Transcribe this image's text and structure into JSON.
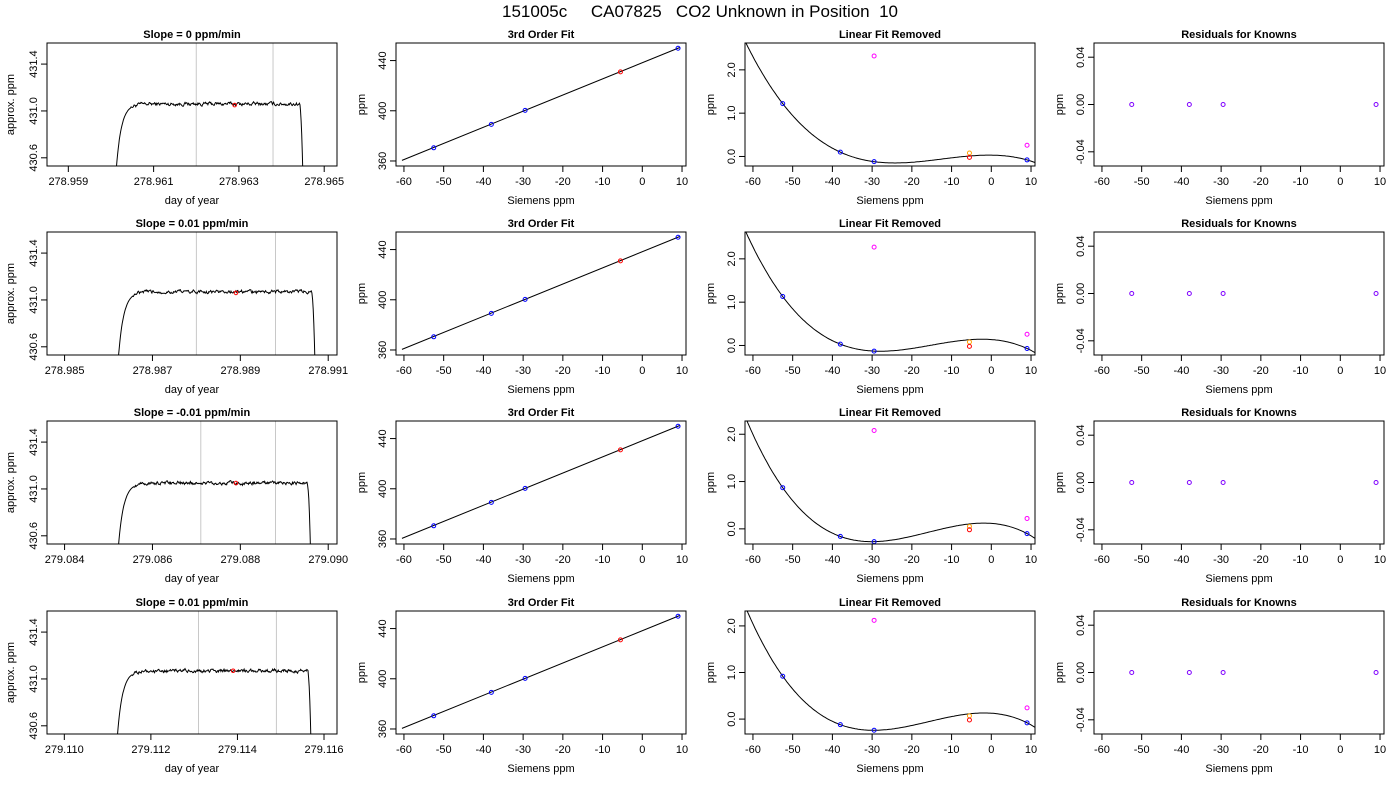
{
  "figure": {
    "title": "151005c     CA07825   CO2 Unknown in Position  10"
  },
  "colors": {
    "axis": "#000000",
    "trace": "#000000",
    "window_line": "#c8c8c8",
    "known_point": "#0000ff",
    "unknown_point": "#ff0000",
    "raw_unknown_point": "#ff00ff",
    "adjusted_point": "#ffa500",
    "residual_point": "#7f00ff"
  },
  "chart_data": [
    {
      "type": "line",
      "panel": "time",
      "title": "Slope =  0  ppm/min",
      "xlabel": "day of year",
      "ylabel": "approx. ppm",
      "xlim": [
        278.9585,
        278.9653
      ],
      "ylim": [
        430.53,
        431.58
      ],
      "xticks": [
        278.959,
        278.961,
        278.963,
        278.965
      ],
      "xtick_labels": [
        "278.959",
        "278.961",
        "278.963",
        "278.965"
      ],
      "yticks": [
        430.6,
        431.0,
        431.4
      ],
      "ytick_labels": [
        "430.6",
        "431.0",
        "431.4"
      ],
      "window_lines": [
        278.962,
        278.9638
      ],
      "trace": {
        "start": 278.9601,
        "end": 278.9645,
        "level": 431.06,
        "rise_tau": 0.00012,
        "noise": 0.012,
        "drop_days": 8e-05,
        "drop_to": 430.45
      },
      "marker": {
        "x": 278.9629,
        "y": 431.05
      }
    },
    {
      "type": "scatter",
      "panel": "fit",
      "title": "3rd Order Fit",
      "xlabel": "Siemens ppm",
      "ylabel": "ppm",
      "xlim": [
        -62,
        11
      ],
      "ylim": [
        356,
        454
      ],
      "xticks": [
        -60,
        -50,
        -40,
        -30,
        -20,
        -10,
        0,
        10
      ],
      "xtick_labels": [
        "-60",
        "-50",
        "-40",
        "-30",
        "-20",
        "-10",
        "0",
        "10"
      ],
      "yticks": [
        360,
        400,
        440
      ],
      "ytick_labels": [
        "360",
        "400",
        "440"
      ],
      "line": {
        "x": [
          -60.5,
          9.5
        ],
        "y": [
          360.5,
          450.5
        ]
      },
      "known_points": [
        {
          "x": -52.5,
          "y": 370.5
        },
        {
          "x": -38,
          "y": 389.2
        },
        {
          "x": -29.5,
          "y": 400.3
        },
        {
          "x": 9,
          "y": 449.8
        }
      ],
      "unknown_points": [
        {
          "x": -5.5,
          "y": 431.0
        }
      ]
    },
    {
      "type": "scatter",
      "panel": "linear_removed",
      "title": "Linear Fit Removed",
      "xlabel": "Siemens ppm",
      "ylabel": "ppm",
      "xlim": [
        -62,
        11
      ],
      "ylim": [
        -0.22,
        2.62
      ],
      "xticks": [
        -60,
        -50,
        -40,
        -30,
        -20,
        -10,
        0,
        10
      ],
      "xtick_labels": [
        "-60",
        "-50",
        "-40",
        "-30",
        "-20",
        "-10",
        "0",
        "10"
      ],
      "yticks": [
        0.0,
        1.0,
        2.0
      ],
      "ytick_labels": [
        "0.0",
        "1.0",
        "2.0"
      ],
      "curve": {
        "points": [
          [
            -52.5,
            1.22
          ],
          [
            -38,
            0.1
          ],
          [
            -29.5,
            -0.12
          ],
          [
            9,
            -0.08
          ]
        ]
      },
      "known_points": [
        {
          "x": -52.5,
          "y": 1.22
        },
        {
          "x": -38,
          "y": 0.1
        },
        {
          "x": -29.5,
          "y": -0.12
        },
        {
          "x": 9,
          "y": -0.08
        }
      ],
      "unknown_points": [
        {
          "x": -5.5,
          "y": -0.02
        }
      ],
      "adjusted_points": [
        {
          "x": -5.5,
          "y": 0.08
        }
      ],
      "raw_points": [
        {
          "x": -29.5,
          "y": 2.32
        },
        {
          "x": 9,
          "y": 0.26
        }
      ]
    },
    {
      "type": "scatter",
      "panel": "residuals",
      "title": "Residuals for Knowns",
      "xlabel": "Siemens ppm",
      "ylabel": "ppm",
      "xlim": [
        -62,
        11
      ],
      "ylim": [
        -0.052,
        0.052
      ],
      "xticks": [
        -60,
        -50,
        -40,
        -30,
        -20,
        -10,
        0,
        10
      ],
      "xtick_labels": [
        "-60",
        "-50",
        "-40",
        "-30",
        "-20",
        "-10",
        "0",
        "10"
      ],
      "yticks": [
        -0.04,
        0.0,
        0.04
      ],
      "ytick_labels": [
        "-0.04",
        "0.00",
        "0.04"
      ],
      "points": [
        {
          "x": -52.5,
          "y": 0
        },
        {
          "x": -38,
          "y": 0
        },
        {
          "x": -29.5,
          "y": 0
        },
        {
          "x": 9,
          "y": 0
        }
      ]
    },
    {
      "type": "line",
      "panel": "time",
      "title": "Slope =  0.01  ppm/min",
      "xlabel": "day of year",
      "ylabel": "approx. ppm",
      "xlim": [
        278.9846,
        278.9912
      ],
      "ylim": [
        430.53,
        431.58
      ],
      "xticks": [
        278.985,
        278.987,
        278.989,
        278.991
      ],
      "xtick_labels": [
        "278.985",
        "278.987",
        "278.989",
        "278.991"
      ],
      "yticks": [
        430.6,
        431.0,
        431.4
      ],
      "ytick_labels": [
        "430.6",
        "431.0",
        "431.4"
      ],
      "window_lines": [
        278.988,
        278.9898
      ],
      "trace": {
        "start": 278.9862,
        "end": 278.9907,
        "level": 431.07,
        "rise_tau": 0.00012,
        "noise": 0.012,
        "drop_days": 8e-05,
        "drop_to": 430.45
      },
      "marker": {
        "x": 278.9889,
        "y": 431.06
      }
    },
    {
      "type": "scatter",
      "panel": "fit",
      "title": "3rd Order Fit",
      "xlabel": "Siemens ppm",
      "ylabel": "ppm",
      "xlim": [
        -62,
        11
      ],
      "ylim": [
        356,
        454
      ],
      "xticks": [
        -60,
        -50,
        -40,
        -30,
        -20,
        -10,
        0,
        10
      ],
      "xtick_labels": [
        "-60",
        "-50",
        "-40",
        "-30",
        "-20",
        "-10",
        "0",
        "10"
      ],
      "yticks": [
        360,
        400,
        440
      ],
      "ytick_labels": [
        "360",
        "400",
        "440"
      ],
      "line": {
        "x": [
          -60.5,
          9.5
        ],
        "y": [
          360.5,
          450.5
        ]
      },
      "known_points": [
        {
          "x": -52.5,
          "y": 370.5
        },
        {
          "x": -38,
          "y": 389.2
        },
        {
          "x": -29.5,
          "y": 400.3
        },
        {
          "x": 9,
          "y": 449.8
        }
      ],
      "unknown_points": [
        {
          "x": -5.5,
          "y": 431.0
        }
      ]
    },
    {
      "type": "scatter",
      "panel": "linear_removed",
      "title": "Linear Fit Removed",
      "xlabel": "Siemens ppm",
      "ylabel": "ppm",
      "xlim": [
        -62,
        11
      ],
      "ylim": [
        -0.22,
        2.62
      ],
      "xticks": [
        -60,
        -50,
        -40,
        -30,
        -20,
        -10,
        0,
        10
      ],
      "xtick_labels": [
        "-60",
        "-50",
        "-40",
        "-30",
        "-20",
        "-10",
        "0",
        "10"
      ],
      "yticks": [
        0.0,
        1.0,
        2.0
      ],
      "ytick_labels": [
        "0.0",
        "1.0",
        "2.0"
      ],
      "curve": {
        "points": [
          [
            -52.5,
            1.13
          ],
          [
            -38,
            0.03
          ],
          [
            -29.5,
            -0.13
          ],
          [
            9,
            -0.07
          ]
        ]
      },
      "known_points": [
        {
          "x": -52.5,
          "y": 1.13
        },
        {
          "x": -38,
          "y": 0.03
        },
        {
          "x": -29.5,
          "y": -0.13
        },
        {
          "x": 9,
          "y": -0.07
        }
      ],
      "unknown_points": [
        {
          "x": -5.5,
          "y": -0.02
        }
      ],
      "adjusted_points": [
        {
          "x": -5.5,
          "y": 0.08
        }
      ],
      "raw_points": [
        {
          "x": -29.5,
          "y": 2.27
        },
        {
          "x": 9,
          "y": 0.26
        }
      ]
    },
    {
      "type": "scatter",
      "panel": "residuals",
      "title": "Residuals for Knowns",
      "xlabel": "Siemens ppm",
      "ylabel": "ppm",
      "xlim": [
        -62,
        11
      ],
      "ylim": [
        -0.052,
        0.052
      ],
      "xticks": [
        -60,
        -50,
        -40,
        -30,
        -20,
        -10,
        0,
        10
      ],
      "xtick_labels": [
        "-60",
        "-50",
        "-40",
        "-30",
        "-20",
        "-10",
        "0",
        "10"
      ],
      "yticks": [
        -0.04,
        0.0,
        0.04
      ],
      "ytick_labels": [
        "-0.04",
        "0.00",
        "0.04"
      ],
      "points": [
        {
          "x": -52.5,
          "y": 0
        },
        {
          "x": -38,
          "y": 0
        },
        {
          "x": -29.5,
          "y": 0
        },
        {
          "x": 9,
          "y": 0
        }
      ]
    },
    {
      "type": "line",
      "panel": "time",
      "title": "Slope =  -0.01  ppm/min",
      "xlabel": "day of year",
      "ylabel": "approx. ppm",
      "xlim": [
        279.0836,
        279.0902
      ],
      "ylim": [
        430.53,
        431.58
      ],
      "xticks": [
        279.084,
        279.086,
        279.088,
        279.09
      ],
      "xtick_labels": [
        "279.084",
        "279.086",
        "279.088",
        "279.090"
      ],
      "yticks": [
        430.6,
        431.0,
        431.4
      ],
      "ytick_labels": [
        "430.6",
        "431.0",
        "431.4"
      ],
      "window_lines": [
        279.0871,
        279.0888
      ],
      "trace": {
        "start": 279.0852,
        "end": 279.0896,
        "level": 431.05,
        "rise_tau": 0.00012,
        "noise": 0.012,
        "drop_days": 8e-05,
        "drop_to": 430.45
      },
      "marker": {
        "x": 279.0879,
        "y": 431.05
      }
    },
    {
      "type": "scatter",
      "panel": "fit",
      "title": "3rd Order Fit",
      "xlabel": "Siemens ppm",
      "ylabel": "ppm",
      "xlim": [
        -62,
        11
      ],
      "ylim": [
        356,
        454
      ],
      "xticks": [
        -60,
        -50,
        -40,
        -30,
        -20,
        -10,
        0,
        10
      ],
      "xtick_labels": [
        "-60",
        "-50",
        "-40",
        "-30",
        "-20",
        "-10",
        "0",
        "10"
      ],
      "yticks": [
        360,
        400,
        440
      ],
      "ytick_labels": [
        "360",
        "400",
        "440"
      ],
      "line": {
        "x": [
          -60.5,
          9.5
        ],
        "y": [
          360.5,
          450.5
        ]
      },
      "known_points": [
        {
          "x": -52.5,
          "y": 370.5
        },
        {
          "x": -38,
          "y": 389.2
        },
        {
          "x": -29.5,
          "y": 400.3
        },
        {
          "x": 9,
          "y": 449.8
        }
      ],
      "unknown_points": [
        {
          "x": -5.5,
          "y": 431.0
        }
      ]
    },
    {
      "type": "scatter",
      "panel": "linear_removed",
      "title": "Linear Fit Removed",
      "xlabel": "Siemens ppm",
      "ylabel": "ppm",
      "xlim": [
        -62,
        11
      ],
      "ylim": [
        -0.32,
        2.28
      ],
      "xticks": [
        -60,
        -50,
        -40,
        -30,
        -20,
        -10,
        0,
        10
      ],
      "xtick_labels": [
        "-60",
        "-50",
        "-40",
        "-30",
        "-20",
        "-10",
        "0",
        "10"
      ],
      "yticks": [
        0.0,
        1.0,
        2.0
      ],
      "ytick_labels": [
        "0.0",
        "1.0",
        "2.0"
      ],
      "curve": {
        "points": [
          [
            -52.5,
            0.87
          ],
          [
            -38,
            -0.16
          ],
          [
            -29.5,
            -0.27
          ],
          [
            9,
            -0.1
          ]
        ]
      },
      "known_points": [
        {
          "x": -52.5,
          "y": 0.87
        },
        {
          "x": -38,
          "y": -0.16
        },
        {
          "x": -29.5,
          "y": -0.27
        },
        {
          "x": 9,
          "y": -0.1
        }
      ],
      "unknown_points": [
        {
          "x": -5.5,
          "y": -0.02
        }
      ],
      "adjusted_points": [
        {
          "x": -5.5,
          "y": 0.05
        }
      ],
      "raw_points": [
        {
          "x": -29.5,
          "y": 2.08
        },
        {
          "x": 9,
          "y": 0.22
        }
      ]
    },
    {
      "type": "scatter",
      "panel": "residuals",
      "title": "Residuals for Knowns",
      "xlabel": "Siemens ppm",
      "ylabel": "ppm",
      "xlim": [
        -62,
        11
      ],
      "ylim": [
        -0.052,
        0.052
      ],
      "xticks": [
        -60,
        -50,
        -40,
        -30,
        -20,
        -10,
        0,
        10
      ],
      "xtick_labels": [
        "-60",
        "-50",
        "-40",
        "-30",
        "-20",
        "-10",
        "0",
        "10"
      ],
      "yticks": [
        -0.04,
        0.0,
        0.04
      ],
      "ytick_labels": [
        "-0.04",
        "0.00",
        "0.04"
      ],
      "points": [
        {
          "x": -52.5,
          "y": 0
        },
        {
          "x": -38,
          "y": 0
        },
        {
          "x": -29.5,
          "y": 0
        },
        {
          "x": 9,
          "y": 0
        }
      ]
    },
    {
      "type": "line",
      "panel": "time",
      "title": "Slope =  0.01  ppm/min",
      "xlabel": "day of year",
      "ylabel": "approx. ppm",
      "xlim": [
        279.1096,
        279.1163
      ],
      "ylim": [
        430.53,
        431.58
      ],
      "xticks": [
        279.11,
        279.112,
        279.114,
        279.116
      ],
      "xtick_labels": [
        "279.110",
        "279.112",
        "279.114",
        "279.116"
      ],
      "yticks": [
        430.6,
        431.0,
        431.4
      ],
      "ytick_labels": [
        "430.6",
        "431.0",
        "431.4"
      ],
      "window_lines": [
        279.1131,
        279.1149
      ],
      "trace": {
        "start": 279.1112,
        "end": 279.1157,
        "level": 431.07,
        "rise_tau": 0.00012,
        "noise": 0.012,
        "drop_days": 8e-05,
        "drop_to": 430.45
      },
      "marker": {
        "x": 279.1139,
        "y": 431.07
      }
    },
    {
      "type": "scatter",
      "panel": "fit",
      "title": "3rd Order Fit",
      "xlabel": "Siemens ppm",
      "ylabel": "ppm",
      "xlim": [
        -62,
        11
      ],
      "ylim": [
        356,
        454
      ],
      "xticks": [
        -60,
        -50,
        -40,
        -30,
        -20,
        -10,
        0,
        10
      ],
      "xtick_labels": [
        "-60",
        "-50",
        "-40",
        "-30",
        "-20",
        "-10",
        "0",
        "10"
      ],
      "yticks": [
        360,
        400,
        440
      ],
      "ytick_labels": [
        "360",
        "400",
        "440"
      ],
      "line": {
        "x": [
          -60.5,
          9.5
        ],
        "y": [
          360.5,
          450.5
        ]
      },
      "known_points": [
        {
          "x": -52.5,
          "y": 370.5
        },
        {
          "x": -38,
          "y": 389.2
        },
        {
          "x": -29.5,
          "y": 400.3
        },
        {
          "x": 9,
          "y": 449.8
        }
      ],
      "unknown_points": [
        {
          "x": -5.5,
          "y": 431.0
        }
      ]
    },
    {
      "type": "scatter",
      "panel": "linear_removed",
      "title": "Linear Fit Removed",
      "xlabel": "Siemens ppm",
      "ylabel": "ppm",
      "xlim": [
        -62,
        11
      ],
      "ylim": [
        -0.32,
        2.32
      ],
      "xticks": [
        -60,
        -50,
        -40,
        -30,
        -20,
        -10,
        0,
        10
      ],
      "xtick_labels": [
        "-60",
        "-50",
        "-40",
        "-30",
        "-20",
        "-10",
        "0",
        "10"
      ],
      "yticks": [
        0.0,
        1.0,
        2.0
      ],
      "ytick_labels": [
        "0.0",
        "1.0",
        "2.0"
      ],
      "curve": {
        "points": [
          [
            -52.5,
            0.92
          ],
          [
            -38,
            -0.12
          ],
          [
            -29.5,
            -0.24
          ],
          [
            9,
            -0.08
          ]
        ]
      },
      "known_points": [
        {
          "x": -52.5,
          "y": 0.92
        },
        {
          "x": -38,
          "y": -0.12
        },
        {
          "x": -29.5,
          "y": -0.24
        },
        {
          "x": 9,
          "y": -0.08
        }
      ],
      "unknown_points": [
        {
          "x": -5.5,
          "y": -0.02
        }
      ],
      "adjusted_points": [
        {
          "x": -5.5,
          "y": 0.07
        }
      ],
      "raw_points": [
        {
          "x": -29.5,
          "y": 2.12
        },
        {
          "x": 9,
          "y": 0.24
        }
      ]
    },
    {
      "type": "scatter",
      "panel": "residuals",
      "title": "Residuals for Knowns",
      "xlabel": "Siemens ppm",
      "ylabel": "ppm",
      "xlim": [
        -62,
        11
      ],
      "ylim": [
        -0.052,
        0.052
      ],
      "xticks": [
        -60,
        -50,
        -40,
        -30,
        -20,
        -10,
        0,
        10
      ],
      "xtick_labels": [
        "-60",
        "-50",
        "-40",
        "-30",
        "-20",
        "-10",
        "0",
        "10"
      ],
      "yticks": [
        -0.04,
        0.0,
        0.04
      ],
      "ytick_labels": [
        "-0.04",
        "0.00",
        "0.04"
      ],
      "points": [
        {
          "x": -52.5,
          "y": 0
        },
        {
          "x": -38,
          "y": 0
        },
        {
          "x": -29.5,
          "y": 0
        },
        {
          "x": 9,
          "y": 0
        }
      ]
    }
  ]
}
